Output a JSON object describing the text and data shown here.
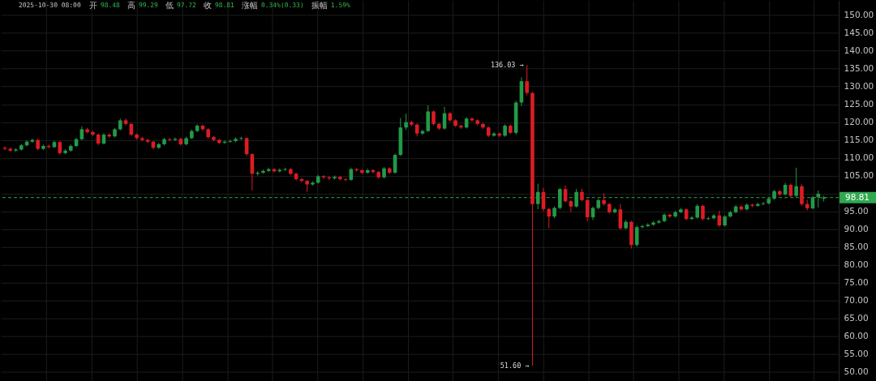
{
  "chart_data": {
    "type": "candlestick",
    "annotations": [
      "2025-10-30 08:00",
      "开",
      "98.48",
      "高",
      "99.29",
      "低",
      "97.72",
      "收",
      "98.81",
      "涨幅",
      "0.34%(0.33)",
      "振幅",
      "1.59%",
      "136.03 →",
      "51.60 →"
    ],
    "categories": [
      null,
      null,
      null,
      null,
      null,
      null,
      null,
      null,
      null,
      null,
      null,
      null,
      null,
      null,
      null,
      null,
      null,
      null,
      null,
      null,
      null,
      null,
      null,
      null,
      null,
      null,
      null,
      null,
      null,
      null,
      null,
      null,
      null,
      null,
      null,
      null,
      null,
      null,
      null,
      null,
      null,
      null,
      null,
      null,
      null,
      null,
      null,
      null,
      null,
      null,
      null,
      null,
      null,
      null,
      null,
      null,
      null,
      null,
      null,
      null,
      null,
      null,
      null,
      null,
      null,
      null,
      null,
      null,
      null,
      null,
      null,
      null,
      null,
      null,
      null,
      null,
      null,
      null,
      null,
      null,
      null,
      null,
      null,
      null,
      null,
      null,
      null,
      null,
      null,
      null,
      null,
      null,
      null,
      null,
      null,
      null,
      null,
      null,
      null,
      null,
      null,
      null,
      null,
      null,
      null,
      null,
      null,
      null,
      null,
      null,
      null,
      null,
      null,
      null,
      null,
      null,
      null,
      null,
      null,
      null,
      null,
      null,
      null,
      null,
      null,
      null,
      null,
      null,
      null,
      null,
      null,
      null,
      null,
      null,
      null,
      null,
      null,
      null,
      null,
      null,
      null,
      null,
      null,
      null,
      null,
      null,
      null,
      null,
      null,
      null,
      null,
      null
    ],
    "ohlc": [
      [
        112.8,
        113.2,
        112.1,
        112.5
      ],
      [
        112.5,
        112.9,
        111.6,
        112.0
      ],
      [
        112.0,
        112.7,
        111.7,
        112.3
      ],
      [
        112.3,
        113.9,
        112.0,
        113.5
      ],
      [
        113.5,
        114.9,
        113.2,
        114.5
      ],
      [
        114.5,
        115.4,
        114.2,
        115.0
      ],
      [
        115.0,
        115.3,
        112.1,
        112.5
      ],
      [
        112.5,
        113.7,
        112.2,
        113.3
      ],
      [
        113.3,
        113.7,
        112.6,
        113.0
      ],
      [
        113.0,
        114.8,
        112.7,
        114.4
      ],
      [
        114.4,
        114.7,
        110.9,
        111.3
      ],
      [
        111.3,
        112.4,
        111.0,
        112.0
      ],
      [
        112.0,
        113.7,
        111.7,
        113.3
      ],
      [
        113.3,
        115.6,
        113.0,
        115.2
      ],
      [
        115.2,
        118.8,
        114.9,
        118.0
      ],
      [
        118.0,
        118.4,
        116.8,
        117.2
      ],
      [
        117.2,
        117.6,
        116.1,
        116.5
      ],
      [
        116.5,
        116.8,
        113.5,
        114.0
      ],
      [
        114.0,
        116.9,
        113.7,
        116.5
      ],
      [
        116.5,
        116.8,
        115.6,
        116.0
      ],
      [
        116.0,
        118.4,
        115.7,
        118.0
      ],
      [
        118.0,
        121.0,
        117.7,
        120.5
      ],
      [
        120.5,
        121.0,
        119.1,
        119.5
      ],
      [
        119.5,
        119.8,
        116.1,
        116.5
      ],
      [
        116.5,
        116.8,
        115.1,
        115.5
      ],
      [
        115.5,
        115.9,
        114.6,
        115.0
      ],
      [
        115.0,
        115.4,
        114.1,
        114.5
      ],
      [
        114.5,
        114.8,
        112.4,
        112.8
      ],
      [
        112.8,
        114.2,
        112.5,
        113.8
      ],
      [
        113.8,
        115.6,
        113.5,
        115.2
      ],
      [
        115.2,
        115.6,
        114.6,
        115.0
      ],
      [
        115.0,
        115.7,
        114.7,
        115.3
      ],
      [
        115.3,
        115.6,
        113.4,
        113.8
      ],
      [
        113.8,
        115.9,
        113.5,
        115.5
      ],
      [
        115.5,
        117.9,
        115.2,
        117.5
      ],
      [
        117.5,
        119.4,
        117.2,
        119.0
      ],
      [
        119.0,
        119.3,
        117.6,
        118.0
      ],
      [
        118.0,
        118.3,
        115.4,
        115.8
      ],
      [
        115.8,
        116.1,
        114.6,
        115.0
      ],
      [
        115.0,
        115.3,
        113.8,
        114.2
      ],
      [
        114.2,
        114.9,
        113.9,
        114.5
      ],
      [
        114.5,
        115.1,
        114.2,
        114.7
      ],
      [
        114.7,
        115.7,
        114.4,
        115.3
      ],
      [
        115.3,
        115.9,
        115.0,
        115.5
      ],
      [
        115.5,
        115.8,
        110.5,
        111.0
      ],
      [
        111.0,
        111.3,
        100.8,
        105.5
      ],
      [
        105.5,
        106.2,
        105.0,
        105.8
      ],
      [
        105.8,
        106.7,
        105.5,
        106.3
      ],
      [
        106.3,
        107.2,
        106.0,
        106.8
      ],
      [
        106.8,
        107.1,
        105.8,
        106.2
      ],
      [
        106.2,
        107.0,
        105.9,
        106.6
      ],
      [
        106.6,
        107.2,
        106.3,
        106.8
      ],
      [
        106.8,
        107.1,
        105.1,
        105.5
      ],
      [
        105.5,
        105.8,
        103.6,
        104.0
      ],
      [
        104.0,
        104.3,
        103.1,
        103.5
      ],
      [
        103.5,
        103.8,
        100.4,
        102.5
      ],
      [
        102.5,
        103.4,
        102.2,
        103.0
      ],
      [
        103.0,
        105.2,
        102.7,
        104.8
      ],
      [
        104.8,
        105.1,
        104.1,
        104.5
      ],
      [
        104.5,
        104.8,
        103.8,
        104.2
      ],
      [
        104.2,
        105.0,
        103.9,
        104.6
      ],
      [
        104.6,
        104.9,
        103.6,
        104.0
      ],
      [
        104.0,
        104.3,
        103.4,
        103.8
      ],
      [
        103.8,
        107.2,
        103.5,
        106.8
      ],
      [
        106.8,
        107.1,
        106.1,
        106.5
      ],
      [
        106.5,
        106.8,
        105.4,
        105.8
      ],
      [
        105.8,
        106.9,
        105.5,
        106.5
      ],
      [
        106.5,
        106.8,
        105.6,
        106.0
      ],
      [
        106.0,
        106.3,
        104.1,
        104.5
      ],
      [
        104.5,
        107.4,
        104.2,
        107.0
      ],
      [
        107.0,
        107.3,
        105.4,
        105.8
      ],
      [
        105.8,
        111.2,
        105.5,
        110.8
      ],
      [
        110.8,
        121.2,
        110.5,
        118.5
      ],
      [
        118.5,
        122.4,
        117.8,
        120.0
      ],
      [
        120.0,
        120.4,
        118.9,
        119.3
      ],
      [
        119.3,
        119.6,
        116.0,
        116.8
      ],
      [
        116.8,
        117.9,
        116.4,
        117.5
      ],
      [
        117.5,
        124.7,
        117.2,
        123.0
      ],
      [
        123.0,
        123.3,
        119.1,
        119.5
      ],
      [
        119.5,
        119.8,
        117.8,
        118.2
      ],
      [
        118.2,
        124.3,
        117.9,
        122.5
      ],
      [
        122.5,
        122.8,
        120.1,
        120.5
      ],
      [
        120.5,
        120.8,
        118.6,
        119.0
      ],
      [
        119.0,
        119.3,
        118.1,
        118.5
      ],
      [
        118.5,
        121.4,
        118.2,
        121.0
      ],
      [
        121.0,
        121.3,
        120.1,
        120.5
      ],
      [
        120.5,
        120.8,
        119.1,
        119.5
      ],
      [
        119.5,
        119.8,
        118.1,
        118.5
      ],
      [
        118.5,
        118.8,
        115.8,
        116.2
      ],
      [
        116.2,
        117.2,
        115.9,
        116.8
      ],
      [
        116.8,
        117.1,
        115.8,
        116.2
      ],
      [
        116.2,
        119.4,
        115.9,
        119.0
      ],
      [
        119.0,
        119.3,
        116.6,
        117.0
      ],
      [
        117.0,
        126.0,
        116.5,
        125.5
      ],
      [
        125.5,
        132.6,
        124.5,
        131.5
      ],
      [
        131.5,
        136.03,
        127.5,
        128.2
      ],
      [
        128.2,
        128.5,
        51.6,
        97.0
      ],
      [
        97.0,
        102.7,
        95.5,
        100.4
      ],
      [
        100.4,
        101.5,
        95.0,
        95.6
      ],
      [
        95.6,
        96.0,
        90.2,
        93.5
      ],
      [
        93.5,
        96.3,
        93.0,
        95.9
      ],
      [
        95.9,
        101.5,
        95.5,
        101.2
      ],
      [
        101.2,
        102.2,
        97.4,
        97.8
      ],
      [
        97.8,
        98.2,
        94.7,
        96.3
      ],
      [
        96.3,
        101.2,
        96.0,
        100.4
      ],
      [
        100.4,
        101.3,
        97.7,
        98.1
      ],
      [
        98.1,
        98.5,
        92.1,
        93.3
      ],
      [
        93.3,
        96.3,
        92.5,
        95.9
      ],
      [
        95.9,
        98.5,
        95.5,
        98.1
      ],
      [
        98.1,
        100.0,
        96.6,
        97.0
      ],
      [
        97.0,
        97.3,
        94.3,
        94.7
      ],
      [
        94.7,
        95.9,
        94.4,
        95.5
      ],
      [
        95.5,
        97.0,
        89.8,
        90.2
      ],
      [
        90.2,
        92.5,
        89.9,
        92.0
      ],
      [
        92.0,
        92.3,
        84.5,
        85.5
      ],
      [
        85.5,
        91.0,
        85.0,
        90.5
      ],
      [
        90.5,
        91.2,
        90.2,
        90.8
      ],
      [
        90.8,
        91.6,
        90.5,
        91.2
      ],
      [
        91.2,
        92.2,
        90.9,
        91.8
      ],
      [
        91.8,
        92.6,
        91.5,
        92.2
      ],
      [
        92.2,
        94.4,
        91.9,
        94.0
      ],
      [
        94.0,
        94.3,
        93.1,
        93.5
      ],
      [
        93.5,
        95.1,
        93.2,
        94.7
      ],
      [
        94.7,
        95.9,
        94.4,
        95.5
      ],
      [
        95.5,
        95.8,
        92.4,
        92.8
      ],
      [
        92.8,
        93.6,
        92.5,
        93.2
      ],
      [
        93.2,
        97.0,
        92.9,
        96.5
      ],
      [
        96.5,
        96.8,
        92.4,
        92.8
      ],
      [
        92.8,
        93.4,
        92.5,
        93.0
      ],
      [
        93.0,
        94.2,
        92.7,
        93.8
      ],
      [
        93.8,
        95.1,
        90.6,
        91.0
      ],
      [
        91.0,
        93.9,
        90.7,
        93.5
      ],
      [
        93.5,
        95.1,
        93.2,
        94.7
      ],
      [
        94.7,
        96.7,
        94.4,
        96.3
      ],
      [
        96.3,
        96.6,
        95.1,
        95.5
      ],
      [
        95.5,
        97.2,
        95.2,
        96.8
      ],
      [
        96.8,
        97.1,
        96.1,
        96.5
      ],
      [
        96.5,
        97.4,
        96.2,
        97.0
      ],
      [
        97.0,
        97.6,
        96.7,
        97.2
      ],
      [
        97.2,
        98.9,
        96.9,
        98.5
      ],
      [
        98.5,
        101.0,
        98.2,
        100.6
      ],
      [
        100.6,
        100.9,
        99.3,
        99.7
      ],
      [
        99.7,
        103.0,
        99.4,
        102.4
      ],
      [
        102.4,
        102.7,
        98.9,
        99.3
      ],
      [
        99.3,
        107.2,
        99.0,
        102.0
      ],
      [
        102.0,
        102.5,
        96.5,
        97.0
      ],
      [
        97.0,
        98.2,
        95.2,
        95.8
      ],
      [
        95.8,
        99.2,
        95.5,
        98.9
      ],
      [
        98.9,
        100.8,
        96.0,
        99.9
      ],
      [
        98.48,
        99.29,
        97.72,
        98.81
      ],
      null,
      null
    ],
    "colors": [
      "#dc1c24",
      "#dc1c24",
      "#229a48",
      "#229a48",
      "#229a48",
      "#229a48",
      "#dc1c24",
      "#229a48",
      "#dc1c24",
      "#229a48",
      "#dc1c24",
      "#229a48",
      "#229a48",
      "#229a48",
      "#229a48",
      "#dc1c24",
      "#dc1c24",
      "#dc1c24",
      "#229a48",
      "#dc1c24",
      "#229a48",
      "#229a48",
      "#dc1c24",
      "#dc1c24",
      "#dc1c24",
      "#dc1c24",
      "#dc1c24",
      "#dc1c24",
      "#229a48",
      "#229a48",
      "#dc1c24",
      "#229a48",
      "#dc1c24",
      "#229a48",
      "#229a48",
      "#229a48",
      "#dc1c24",
      "#dc1c24",
      "#dc1c24",
      "#dc1c24",
      "#229a48",
      "#229a48",
      "#229a48",
      "#229a48",
      "#dc1c24",
      "#dc1c24",
      "#229a48",
      "#229a48",
      "#229a48",
      "#dc1c24",
      "#229a48",
      "#229a48",
      "#dc1c24",
      "#dc1c24",
      "#dc1c24",
      "#dc1c24",
      "#229a48",
      "#229a48",
      "#dc1c24",
      "#dc1c24",
      "#229a48",
      "#dc1c24",
      "#dc1c24",
      "#229a48",
      "#dc1c24",
      "#dc1c24",
      "#229a48",
      "#dc1c24",
      "#dc1c24",
      "#229a48",
      "#dc1c24",
      "#229a48",
      "#229a48",
      "#229a48",
      "#dc1c24",
      "#dc1c24",
      "#229a48",
      "#229a48",
      "#dc1c24",
      "#dc1c24",
      "#229a48",
      "#dc1c24",
      "#dc1c24",
      "#dc1c24",
      "#229a48",
      "#dc1c24",
      "#dc1c24",
      "#dc1c24",
      "#dc1c24",
      "#229a48",
      "#dc1c24",
      "#229a48",
      "#dc1c24",
      "#229a48",
      "#229a48",
      "#dc1c24",
      "#dc1c24",
      "#229a48",
      "#dc1c24",
      "#dc1c24",
      "#229a48",
      "#229a48",
      "#dc1c24",
      "#dc1c24",
      "#229a48",
      "#dc1c24",
      "#dc1c24",
      "#229a48",
      "#229a48",
      "#dc1c24",
      "#dc1c24",
      "#229a48",
      "#dc1c24",
      "#229a48",
      "#dc1c24",
      "#229a48",
      "#229a48",
      "#229a48",
      "#229a48",
      "#229a48",
      "#229a48",
      "#dc1c24",
      "#229a48",
      "#229a48",
      "#dc1c24",
      "#229a48",
      "#229a48",
      "#dc1c24",
      "#229a48",
      "#229a48",
      "#dc1c24",
      "#229a48",
      "#229a48",
      "#229a48",
      "#dc1c24",
      "#229a48",
      "#dc1c24",
      "#229a48",
      "#229a48",
      "#229a48",
      "#229a48",
      "#dc1c24",
      "#229a48",
      "#dc1c24",
      "#229a48",
      "#dc1c24",
      "#dc1c24",
      "#229a48",
      "#229a48",
      "#229a48",
      null,
      null
    ],
    "ylim": [
      47.4,
      154.2
    ],
    "yticks": [
      {
        "value": 50,
        "label": "50.00"
      },
      {
        "value": 55,
        "label": "55.00"
      },
      {
        "value": 60,
        "label": "60.00"
      },
      {
        "value": 65,
        "label": "65.00"
      },
      {
        "value": 70,
        "label": "70.00"
      },
      {
        "value": 75,
        "label": "75.00"
      },
      {
        "value": 80,
        "label": "80.00"
      },
      {
        "value": 85,
        "label": "85.00"
      },
      {
        "value": 90,
        "label": "90.00"
      },
      {
        "value": 95,
        "label": "95.00"
      },
      {
        "value": 100,
        "label": null
      },
      {
        "value": 105,
        "label": "105.00"
      },
      {
        "value": 110,
        "label": "110.00"
      },
      {
        "value": 115,
        "label": "115.00"
      },
      {
        "value": 120,
        "label": "120.00"
      },
      {
        "value": 125,
        "label": "125.00"
      },
      {
        "value": 130,
        "label": "130.00"
      },
      {
        "value": 135,
        "label": "135.00"
      },
      {
        "value": 140,
        "label": "140.00"
      },
      {
        "value": 145,
        "label": "145.00"
      },
      {
        "value": 150,
        "label": "150.00"
      }
    ],
    "ref_lines": [
      {
        "axis": "y",
        "value": 98.81,
        "label": "98.81",
        "color": "#2fa84f",
        "line_style": "dashed"
      }
    ],
    "grid": true,
    "tick_labels": "y"
  }
}
